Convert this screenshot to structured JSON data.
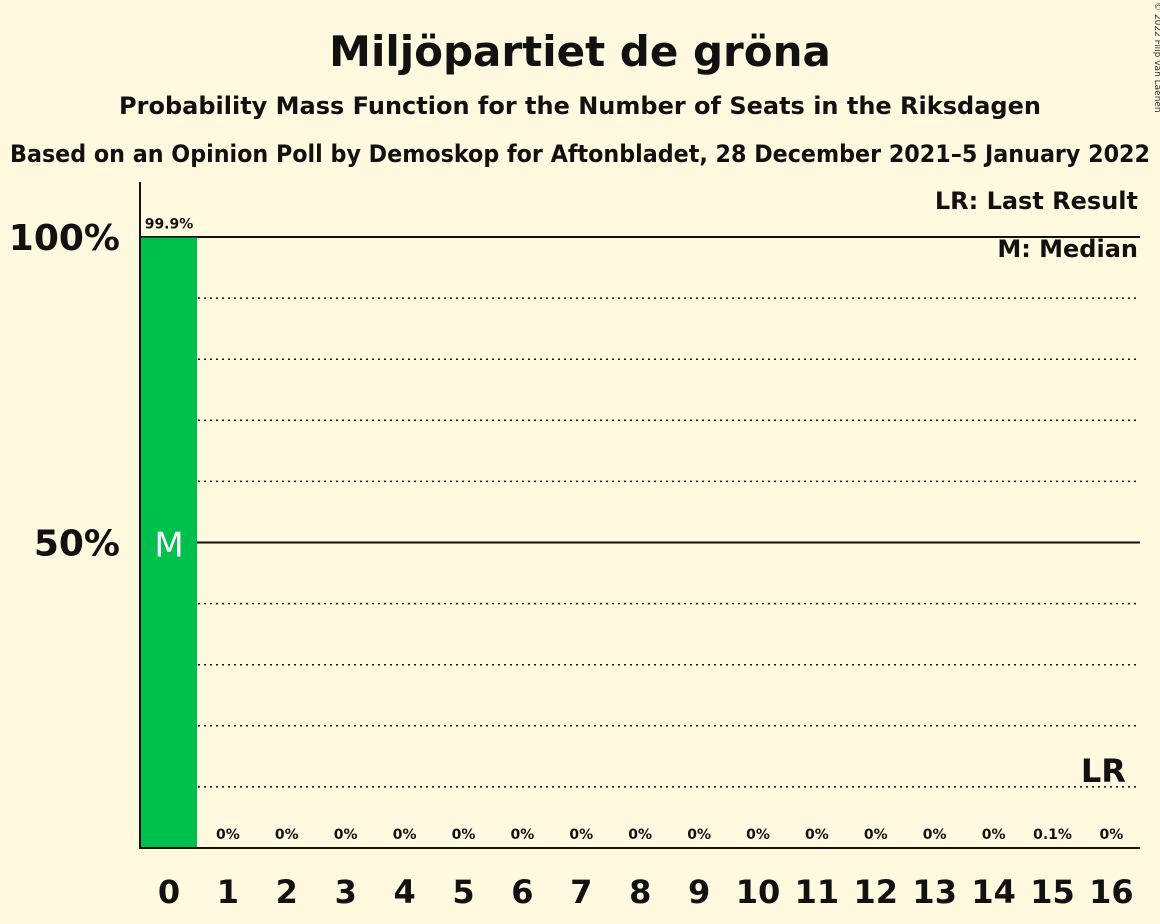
{
  "colors": {
    "background": "#FFF9E0",
    "bar": "#00C04D",
    "text": "#111111"
  },
  "chart_data": {
    "type": "bar",
    "title": "Miljöpartiet de gröna",
    "subtitle": "Probability Mass Function for the Number of Seats in the Riksdagen",
    "subtitle2": "Based on an Opinion Poll by Demoskop for Aftonbladet, 28 December 2021–5 January 2022",
    "copyright": "© 2022 Filip van Laenen",
    "xlabel": "",
    "ylabel": "",
    "categories": [
      "0",
      "1",
      "2",
      "3",
      "4",
      "5",
      "6",
      "7",
      "8",
      "9",
      "10",
      "11",
      "12",
      "13",
      "14",
      "15",
      "16"
    ],
    "values": [
      99.9,
      0,
      0,
      0,
      0,
      0,
      0,
      0,
      0,
      0,
      0,
      0,
      0,
      0,
      0,
      0.1,
      0
    ],
    "data_labels": [
      "99.9%",
      "0%",
      "0%",
      "0%",
      "0%",
      "0%",
      "0%",
      "0%",
      "0%",
      "0%",
      "0%",
      "0%",
      "0%",
      "0%",
      "0%",
      "0.1%",
      "0%"
    ],
    "ylim": [
      0,
      100
    ],
    "yticks": [
      {
        "value": 100,
        "label": "100%"
      },
      {
        "value": 50,
        "label": "50%"
      }
    ],
    "gridlines": [
      10,
      20,
      30,
      40,
      60,
      70,
      80,
      90
    ],
    "median": {
      "seat": "0",
      "label": "M"
    },
    "last_result": {
      "seat": "16",
      "label": "LR"
    },
    "legend": {
      "position": "top-right",
      "lr": "LR: Last Result",
      "m": "M: Median"
    }
  }
}
